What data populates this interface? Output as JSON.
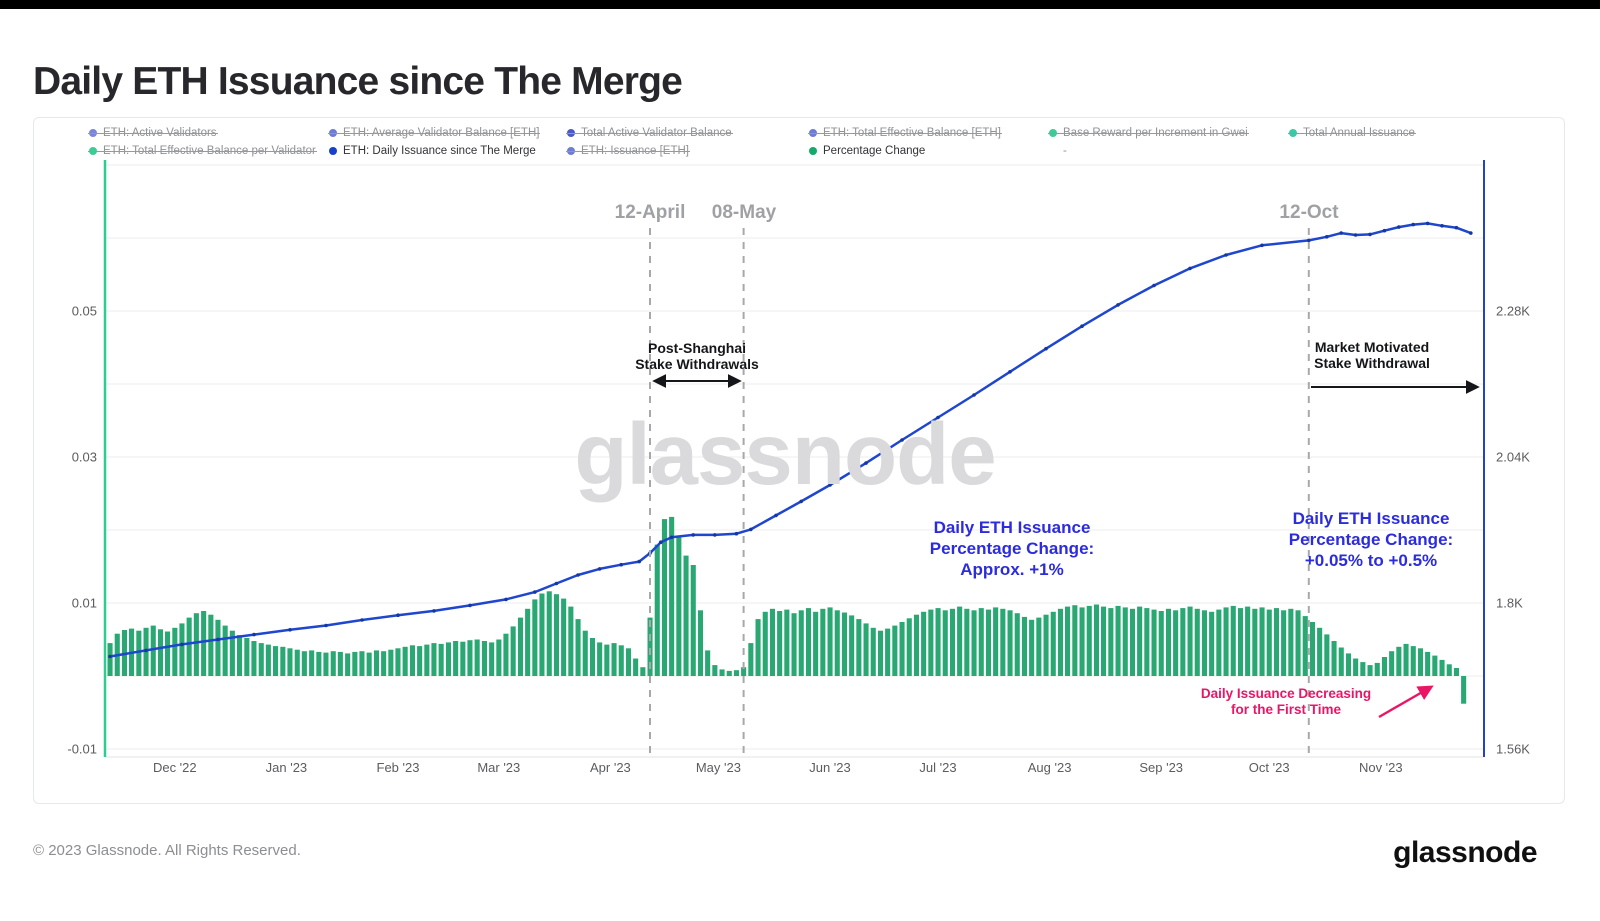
{
  "page": {
    "title": "Daily ETH Issuance since The Merge",
    "footer_copyright": "© 2023 Glassnode. All Rights Reserved.",
    "brand_logo": "glassnode",
    "watermark": "glassnode"
  },
  "legend": {
    "rows": [
      [
        {
          "label": "ETH: Active Validators",
          "color": "#7b86d6",
          "state": "struck"
        },
        {
          "label": "ETH: Average Validator Balance [ETH]",
          "color": "#6d7dd4",
          "state": "struck"
        },
        {
          "label": "Total Active Validator Balance",
          "color": "#4a5bc3",
          "state": "struck"
        },
        {
          "label": "ETH: Total Effective Balance [ETH]",
          "color": "#6d7dd4",
          "state": "struck"
        },
        {
          "label": "Base Reward per Increment in Gwei",
          "color": "#3ecb96",
          "state": "struck"
        },
        {
          "label": "Total Annual Issuance",
          "color": "#3cc9a8",
          "state": "struck"
        }
      ],
      [
        {
          "label": "ETH: Total Effective Balance per Validator",
          "color": "#3ecb96",
          "state": "struck"
        },
        {
          "label": "ETH: Daily Issuance since The Merge",
          "color": "#1840c8",
          "state": "active"
        },
        {
          "label": "ETH: Issuance [ETH]",
          "color": "#6d7dd4",
          "state": "struck"
        },
        {
          "label": "Percentage Change",
          "color": "#15a96b",
          "state": "active"
        },
        {
          "label": "-",
          "color": "",
          "state": "dashonly"
        }
      ]
    ]
  },
  "chart_data": {
    "type": "mixed",
    "title": "Daily ETH Issuance since The Merge",
    "x_range": "mid-Nov 2022 to late-Nov 2023 (daily)",
    "left_axis": {
      "units": "fraction (0.01 = 1%)",
      "series": "Percentage Change",
      "color": "#2ecd8f",
      "ticks": [
        {
          "v": 0.05,
          "label": "0.05"
        },
        {
          "v": 0.03,
          "label": "0.03"
        },
        {
          "v": 0.01,
          "label": "0.01"
        },
        {
          "v": -0.01,
          "label": "-0.01"
        }
      ],
      "gridline_values": [
        0.07,
        0.06,
        0.05,
        0.04,
        0.03,
        0.02,
        0.01,
        0,
        -0.01
      ]
    },
    "right_axis": {
      "units": "ETH per day",
      "series": "ETH: Daily Issuance since The Merge",
      "color": "#2443c4",
      "ticks": [
        {
          "v": 2280,
          "label": "2.28K"
        },
        {
          "v": 2040,
          "label": "2.04K"
        },
        {
          "v": 1800,
          "label": "1.8K"
        },
        {
          "v": 1560,
          "label": "1.56K"
        }
      ]
    },
    "x_axis": {
      "labels": [
        {
          "text": "Dec '22",
          "day": 18
        },
        {
          "text": "Jan '23",
          "day": 49
        },
        {
          "text": "Feb '23",
          "day": 80
        },
        {
          "text": "Mar '23",
          "day": 108
        },
        {
          "text": "Apr '23",
          "day": 139
        },
        {
          "text": "May '23",
          "day": 169
        },
        {
          "text": "Jun '23",
          "day": 200
        },
        {
          "text": "Jul '23",
          "day": 230
        },
        {
          "text": "Aug '23",
          "day": 261
        },
        {
          "text": "Sep '23",
          "day": 292
        },
        {
          "text": "Oct '23",
          "day": 322
        },
        {
          "text": "Nov '23",
          "day": 353
        }
      ]
    },
    "event_lines": [
      {
        "label": "12-April",
        "day": 150
      },
      {
        "label": "08-May",
        "day": 176
      },
      {
        "label": "12-Oct",
        "day": 333
      }
    ],
    "series": [
      {
        "name": "Percentage Change",
        "type": "bar",
        "axis": "left",
        "color": "#2aa873",
        "start_day": 0,
        "day_step": 2,
        "values": [
          0.0045,
          0.0058,
          0.0063,
          0.0065,
          0.0062,
          0.0066,
          0.0069,
          0.0064,
          0.0061,
          0.0066,
          0.0072,
          0.008,
          0.0086,
          0.0089,
          0.0084,
          0.0077,
          0.0069,
          0.0062,
          0.0056,
          0.0052,
          0.0048,
          0.0045,
          0.0043,
          0.0041,
          0.004,
          0.0038,
          0.0036,
          0.0034,
          0.0035,
          0.0033,
          0.0032,
          0.0034,
          0.0033,
          0.0031,
          0.0033,
          0.0034,
          0.0032,
          0.0035,
          0.0034,
          0.0036,
          0.0038,
          0.004,
          0.0042,
          0.0041,
          0.0043,
          0.0045,
          0.0044,
          0.0046,
          0.0048,
          0.0047,
          0.0049,
          0.005,
          0.0048,
          0.0046,
          0.005,
          0.0058,
          0.0068,
          0.008,
          0.0092,
          0.0105,
          0.0113,
          0.0116,
          0.0112,
          0.0106,
          0.0095,
          0.0078,
          0.0062,
          0.0052,
          0.0046,
          0.0043,
          0.0045,
          0.0042,
          0.0038,
          0.0024,
          0.0012,
          0.008,
          0.018,
          0.0215,
          0.0218,
          0.019,
          0.0165,
          0.0152,
          0.009,
          0.0035,
          0.0015,
          0.0009,
          0.0007,
          0.0008,
          0.0012,
          0.0045,
          0.0078,
          0.0088,
          0.0092,
          0.0089,
          0.0091,
          0.0086,
          0.009,
          0.0093,
          0.0088,
          0.0092,
          0.0094,
          0.009,
          0.0087,
          0.0083,
          0.0078,
          0.0072,
          0.0066,
          0.0062,
          0.0065,
          0.0069,
          0.0074,
          0.0079,
          0.0084,
          0.0088,
          0.0091,
          0.0093,
          0.009,
          0.0092,
          0.0095,
          0.0092,
          0.009,
          0.0093,
          0.0091,
          0.0094,
          0.0092,
          0.009,
          0.0086,
          0.0081,
          0.0077,
          0.008,
          0.0084,
          0.0088,
          0.0092,
          0.0095,
          0.0097,
          0.0094,
          0.0096,
          0.0098,
          0.0095,
          0.0093,
          0.0096,
          0.0094,
          0.0092,
          0.0095,
          0.0093,
          0.0091,
          0.0089,
          0.0092,
          0.009,
          0.0093,
          0.0095,
          0.0092,
          0.009,
          0.0088,
          0.0091,
          0.0094,
          0.0096,
          0.0093,
          0.0095,
          0.0092,
          0.0094,
          0.0091,
          0.0093,
          0.009,
          0.0092,
          0.009,
          0.0082,
          0.0074,
          0.0066,
          0.0057,
          0.0048,
          0.0039,
          0.0031,
          0.0024,
          0.0019,
          0.0015,
          0.0018,
          0.0026,
          0.0034,
          0.004,
          0.0044,
          0.0041,
          0.0038,
          0.0033,
          0.0028,
          0.0022,
          0.0016,
          0.0011,
          -0.0038
        ]
      },
      {
        "name": "ETH: Daily Issuance since The Merge",
        "type": "line",
        "axis": "right",
        "color": "#1e46cf",
        "points": [
          [
            0,
            1712
          ],
          [
            10,
            1722
          ],
          [
            20,
            1732
          ],
          [
            30,
            1740
          ],
          [
            40,
            1748
          ],
          [
            50,
            1756
          ],
          [
            60,
            1763
          ],
          [
            70,
            1772
          ],
          [
            80,
            1780
          ],
          [
            90,
            1787
          ],
          [
            100,
            1796
          ],
          [
            110,
            1806
          ],
          [
            118,
            1818
          ],
          [
            124,
            1832
          ],
          [
            130,
            1846
          ],
          [
            136,
            1856
          ],
          [
            142,
            1863
          ],
          [
            147,
            1868
          ],
          [
            150,
            1882
          ],
          [
            153,
            1900
          ],
          [
            156,
            1908
          ],
          [
            162,
            1912
          ],
          [
            168,
            1912
          ],
          [
            174,
            1914
          ],
          [
            178,
            1921
          ],
          [
            185,
            1944
          ],
          [
            192,
            1967
          ],
          [
            200,
            1994
          ],
          [
            210,
            2030
          ],
          [
            220,
            2068
          ],
          [
            230,
            2105
          ],
          [
            240,
            2142
          ],
          [
            250,
            2180
          ],
          [
            260,
            2218
          ],
          [
            270,
            2255
          ],
          [
            280,
            2290
          ],
          [
            290,
            2322
          ],
          [
            300,
            2350
          ],
          [
            310,
            2372
          ],
          [
            320,
            2388
          ],
          [
            333,
            2396
          ],
          [
            338,
            2402
          ],
          [
            342,
            2408
          ],
          [
            346,
            2405
          ],
          [
            350,
            2406
          ],
          [
            354,
            2412
          ],
          [
            358,
            2418
          ],
          [
            362,
            2422
          ],
          [
            366,
            2424
          ],
          [
            370,
            2420
          ],
          [
            374,
            2417
          ],
          [
            378,
            2408
          ]
        ]
      }
    ],
    "annotations": {
      "post_shanghai": {
        "line1": "Post-Shanghai",
        "line2": "Stake Withdrawals"
      },
      "market_motivated": {
        "line1": "Market Motivated",
        "line2": "Stake Withdrawal"
      },
      "blue_left": {
        "line1": "Daily ETH Issuance",
        "line2": "Percentage Change:",
        "line3": "Approx. +1%"
      },
      "blue_right": {
        "line1": "Daily ETH Issuance",
        "line2": "Percentage Change:",
        "line3": "+0.05% to +0.5%"
      },
      "pink": {
        "line1": "Daily Issuance Decreasing",
        "line2": "for the First Time"
      }
    },
    "colors": {
      "bar": "#2aa873",
      "line": "#1e46cf",
      "left_axis_line": "#2ecd8f",
      "end_vertical_line": "#2443c4",
      "dashed_line": "#a7a8ab",
      "annotation_blue": "#2b2bdf",
      "annotation_pink": "#eb1566",
      "watermark": "#dadadd"
    }
  }
}
